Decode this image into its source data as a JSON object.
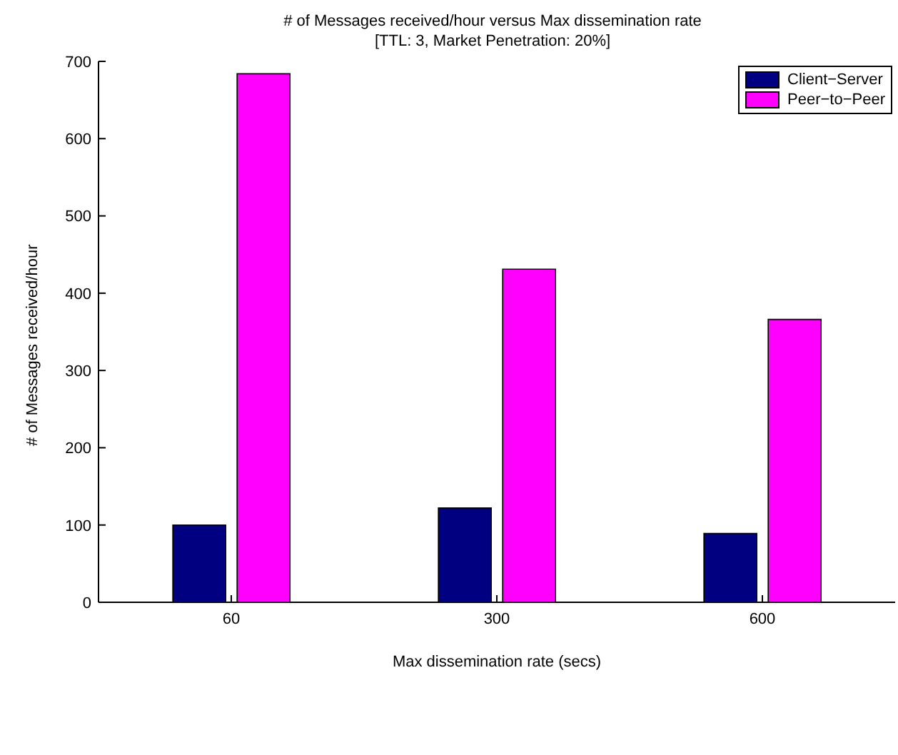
{
  "chart_data": {
    "type": "bar",
    "title": "# of Messages received/hour versus Max dissemination rate",
    "subtitle": "[TTL: 3, Market Penetration: 20%]",
    "xlabel": "Max dissemination rate (secs)",
    "ylabel": "# of Messages received/hour",
    "categories": [
      "60",
      "300",
      "600"
    ],
    "series": [
      {
        "name": "Client−Server",
        "color": "#000080",
        "values": [
          100,
          122,
          89
        ]
      },
      {
        "name": "Peer−to−Peer",
        "color": "#ff00ff",
        "values": [
          684,
          431,
          366
        ]
      }
    ],
    "ylim": [
      0,
      700
    ],
    "yticks": [
      0,
      100,
      200,
      300,
      400,
      500,
      600,
      700
    ],
    "grid": false,
    "legend": "top right"
  }
}
